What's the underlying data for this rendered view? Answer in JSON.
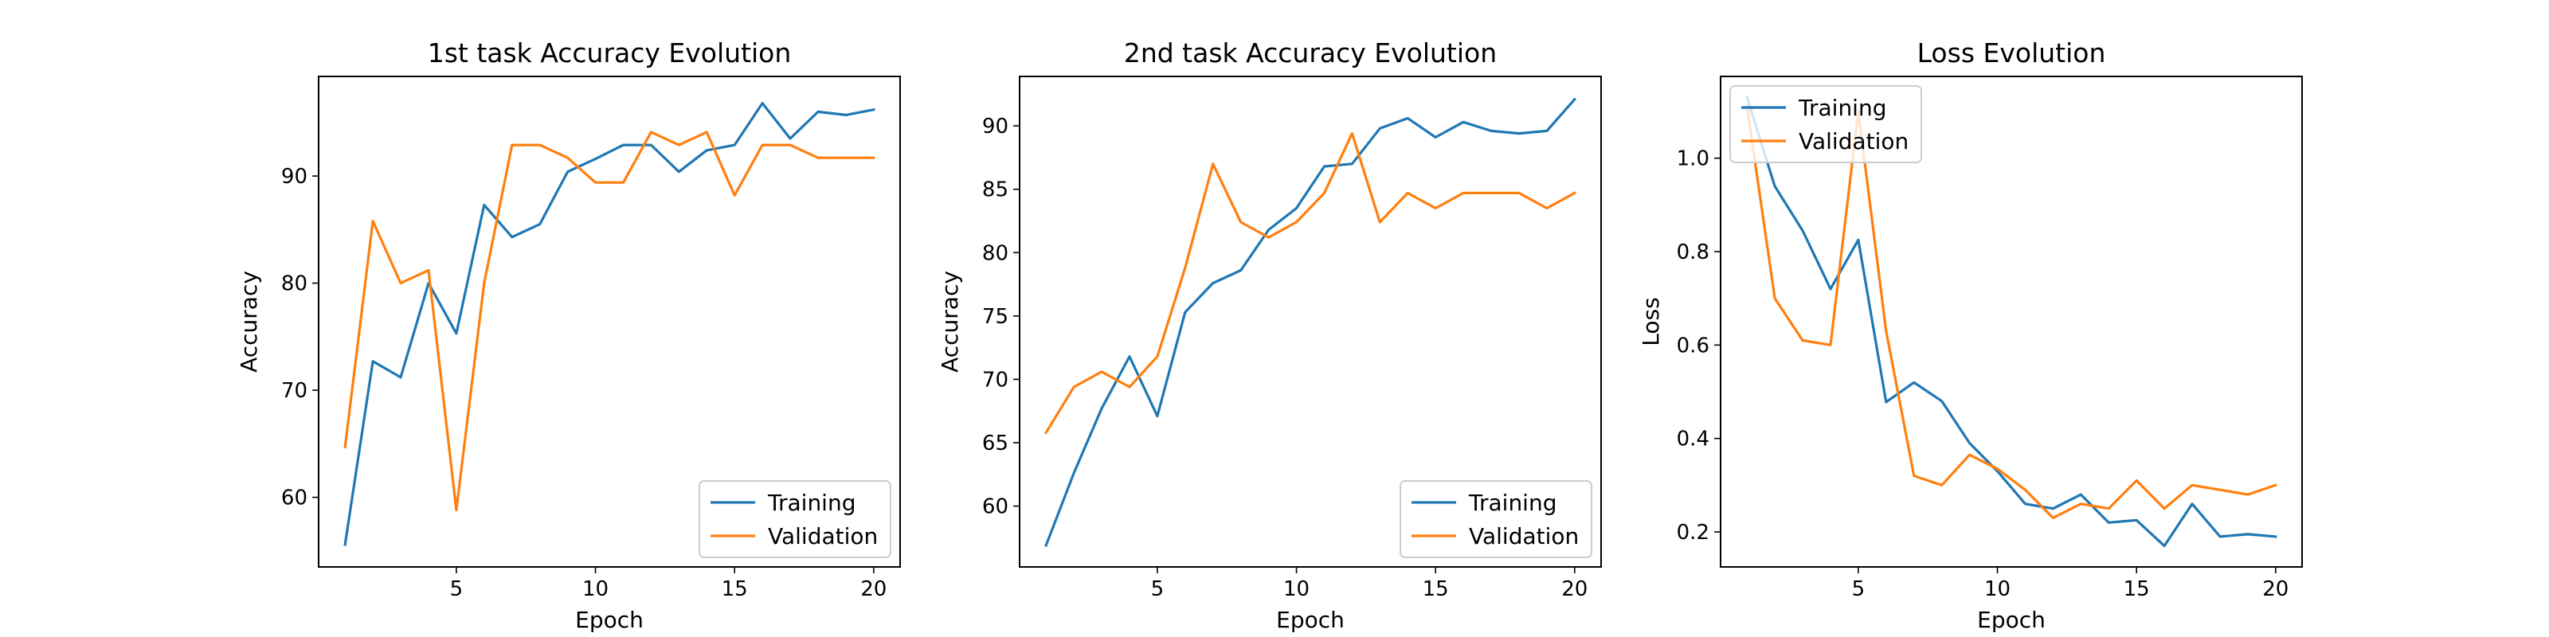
{
  "colors": {
    "training": "#1f77b4",
    "validation": "#ff7f0e"
  },
  "chart_data": [
    {
      "type": "line",
      "title": "1st task Accuracy Evolution",
      "xlabel": "Epoch",
      "ylabel": "Accuracy",
      "xlim": [
        0.05,
        20.95
      ],
      "ylim": [
        53.5,
        99.3
      ],
      "xticks": [
        5,
        10,
        15,
        20
      ],
      "yticks": [
        60,
        70,
        80,
        90
      ],
      "legend_position": "lower-right",
      "x": [
        1,
        2,
        3,
        4,
        5,
        6,
        7,
        8,
        9,
        10,
        11,
        12,
        13,
        14,
        15,
        16,
        17,
        18,
        19,
        20
      ],
      "series": [
        {
          "name": "Training",
          "values": [
            55.6,
            72.7,
            71.2,
            80.0,
            75.3,
            87.3,
            84.3,
            85.5,
            90.4,
            91.6,
            92.9,
            92.9,
            90.4,
            92.4,
            92.9,
            96.8,
            93.5,
            96.0,
            95.7,
            96.2
          ]
        },
        {
          "name": "Validation",
          "values": [
            64.7,
            85.8,
            80.0,
            81.2,
            58.8,
            80.0,
            92.9,
            92.9,
            91.7,
            89.4,
            89.4,
            94.1,
            92.9,
            94.1,
            88.2,
            92.9,
            92.9,
            91.7,
            91.7,
            91.7
          ]
        }
      ]
    },
    {
      "type": "line",
      "title": "2nd task Accuracy Evolution",
      "xlabel": "Epoch",
      "ylabel": "Accuracy",
      "xlim": [
        0.05,
        20.95
      ],
      "ylim": [
        55.2,
        93.9
      ],
      "xticks": [
        5,
        10,
        15,
        20
      ],
      "yticks": [
        60,
        65,
        70,
        75,
        80,
        85,
        90
      ],
      "legend_position": "lower-right",
      "x": [
        1,
        2,
        3,
        4,
        5,
        6,
        7,
        8,
        9,
        10,
        11,
        12,
        13,
        14,
        15,
        16,
        17,
        18,
        19,
        20
      ],
      "series": [
        {
          "name": "Training",
          "values": [
            56.9,
            62.6,
            67.7,
            71.8,
            67.1,
            75.3,
            77.6,
            78.6,
            81.8,
            83.5,
            86.8,
            87.0,
            89.8,
            90.6,
            89.1,
            90.3,
            89.6,
            89.4,
            89.6,
            92.1
          ]
        },
        {
          "name": "Validation",
          "values": [
            65.8,
            69.4,
            70.6,
            69.4,
            71.8,
            78.8,
            87.0,
            82.4,
            81.2,
            82.4,
            84.7,
            89.4,
            82.4,
            84.7,
            83.5,
            84.7,
            84.7,
            84.7,
            83.5,
            84.7
          ]
        }
      ]
    },
    {
      "type": "line",
      "title": "Loss Evolution",
      "xlabel": "Epoch",
      "ylabel": "Loss",
      "xlim": [
        0.05,
        20.95
      ],
      "ylim": [
        0.125,
        1.175
      ],
      "xticks": [
        5,
        10,
        15,
        20
      ],
      "yticks": [
        0.2,
        0.4,
        0.6,
        0.8,
        1.0
      ],
      "ytick_labels": [
        "0.2",
        "0.4",
        "0.6",
        "0.8",
        "1.0"
      ],
      "legend_position": "upper-left",
      "x": [
        1,
        2,
        3,
        4,
        5,
        6,
        7,
        8,
        9,
        10,
        11,
        12,
        13,
        14,
        15,
        16,
        17,
        18,
        19,
        20
      ],
      "series": [
        {
          "name": "Training",
          "values": [
            1.13,
            0.94,
            0.845,
            0.72,
            0.825,
            0.478,
            0.52,
            0.48,
            0.39,
            0.33,
            0.26,
            0.25,
            0.28,
            0.22,
            0.225,
            0.17,
            0.26,
            0.19,
            0.195,
            0.19
          ]
        },
        {
          "name": "Validation",
          "values": [
            1.11,
            0.7,
            0.61,
            0.6,
            1.1,
            0.63,
            0.32,
            0.3,
            0.365,
            0.335,
            0.29,
            0.23,
            0.26,
            0.25,
            0.31,
            0.25,
            0.3,
            0.29,
            0.28,
            0.3
          ]
        }
      ]
    }
  ]
}
